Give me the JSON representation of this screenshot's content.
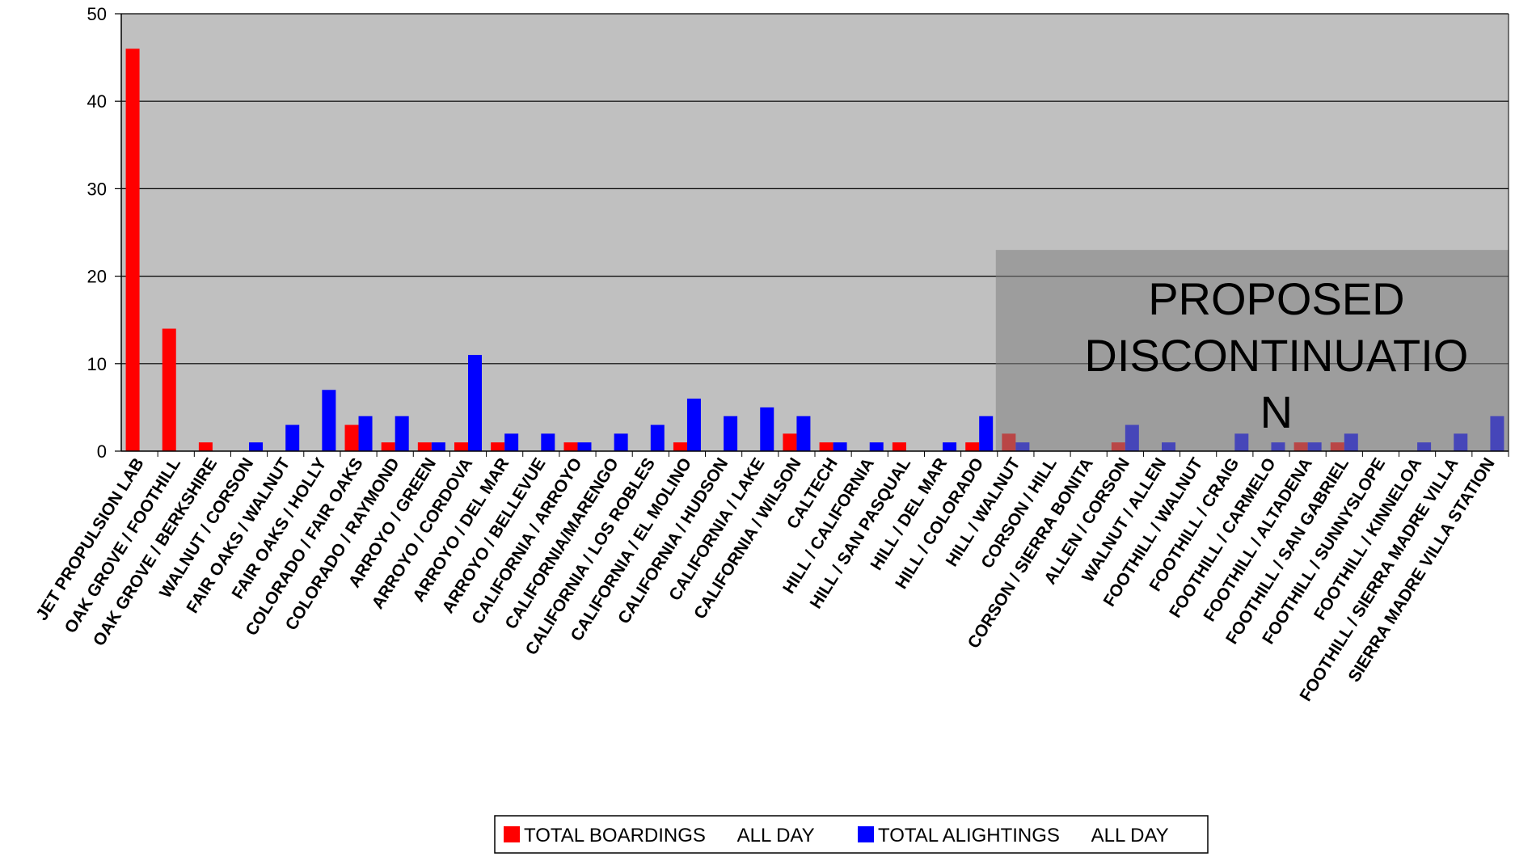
{
  "chart_data": {
    "type": "bar",
    "title": "",
    "xlabel": "",
    "ylabel": "",
    "ylim": [
      0,
      50
    ],
    "yticks": [
      0,
      10,
      20,
      30,
      40,
      50
    ],
    "grid": true,
    "legend_placement": "bottom-center",
    "categories": [
      "JET PROPULSION LAB",
      "OAK GROVE / FOOTHILL",
      "OAK GROVE / BERKSHIRE",
      "WALNUT / CORSON",
      "FAIR OAKS / WALNUT",
      "FAIR OAKS / HOLLY",
      "COLORADO / FAIR OAKS",
      "COLORADO / RAYMOND",
      "ARROYO / GREEN",
      "ARROYO / CORDOVA",
      "ARROYO / DEL MAR",
      "ARROYO / BELLEVUE",
      "CALIFORNIA / ARROYO",
      "CALIFORNIA/MARENGO",
      "CALIFORNIA / LOS ROBLES",
      "CALIFORNIA / EL MOLINO",
      "CALIFORNIA / HUDSON",
      "CALIFORNIA / LAKE",
      "CALIFORNIA / WILSON",
      "CALTECH",
      "HILL / CALIFORNIA",
      "HILL / SAN PASQUAL",
      "HILL / DEL MAR",
      "HILL / COLORADO",
      "HILL / WALNUT",
      "CORSON / HILL",
      "CORSON / SIERRA BONITA",
      "ALLEN / CORSON",
      "WALNUT / ALLEN",
      "FOOTHILL / WALNUT",
      "FOOTHILL / CRAIG",
      "FOOTHILL / CARMELO",
      "FOOTHILL / ALTADENA",
      "FOOTHILL / SAN GABRIEL",
      "FOOTHILL / SUNNYSLOPE",
      "FOOTHILL / KINNELOA",
      "FOOTHILL / SIERRA MADRE VILLA",
      "SIERRA MADRE VILLA STATION"
    ],
    "series": [
      {
        "name": "TOTAL BOARDINGS      ALL DAY",
        "color": "#ff0000",
        "values": [
          46,
          14,
          1,
          0,
          0,
          0,
          3,
          1,
          1,
          1,
          1,
          0,
          1,
          0,
          0,
          1,
          0,
          0,
          2,
          1,
          0,
          1,
          0,
          1,
          2,
          0,
          0,
          1,
          0,
          0,
          0,
          0,
          1,
          1,
          0,
          0,
          0,
          0
        ]
      },
      {
        "name": "TOTAL ALIGHTINGS      ALL DAY",
        "color": "#0000ff",
        "values": [
          0,
          0,
          0,
          1,
          3,
          7,
          4,
          4,
          1,
          11,
          2,
          2,
          1,
          2,
          3,
          6,
          4,
          5,
          4,
          1,
          1,
          0,
          1,
          4,
          1,
          0,
          0,
          3,
          1,
          0,
          2,
          1,
          1,
          2,
          0,
          1,
          2,
          4
        ]
      }
    ],
    "annotation": {
      "lines": [
        "PROPOSED",
        "DISCONTINUATIO",
        "N"
      ],
      "from_category": "HILL / WALNUT",
      "top_value": 23
    },
    "plot_background": "#c0c0c0",
    "overlay_color": "#808080"
  }
}
